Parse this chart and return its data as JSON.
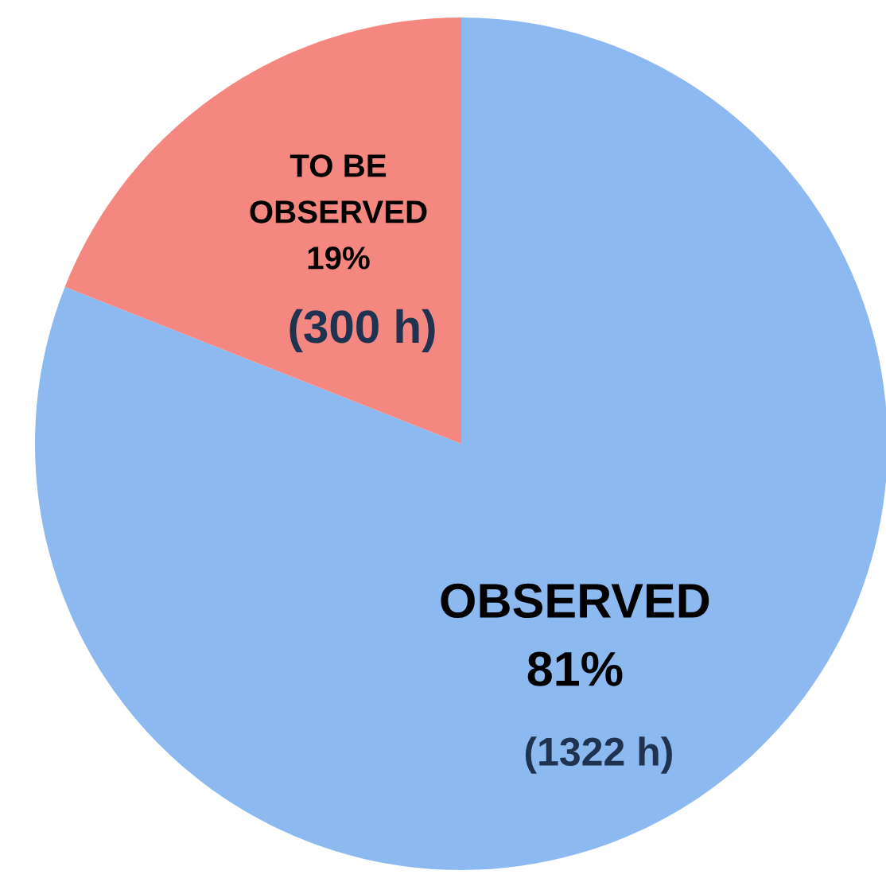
{
  "chart_data": {
    "type": "pie",
    "categories": [
      "OBSERVED",
      "TO BE\nOBSERVED"
    ],
    "values": [
      81,
      19
    ],
    "value_labels": [
      "81%",
      "19%"
    ],
    "colors": [
      "#8cb9f0",
      "#f4877f"
    ],
    "annotations": [
      "(1322 h)",
      "(300 h)"
    ]
  }
}
